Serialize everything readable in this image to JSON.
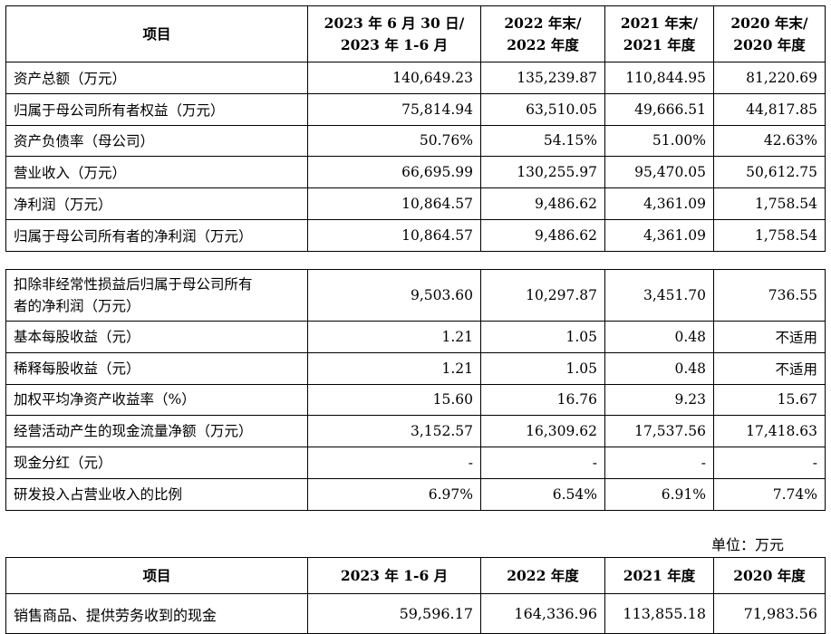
{
  "table1": {
    "headers": [
      [
        "项目"
      ],
      [
        "2023 年 6 月 30 日/",
        "2023 年 1-6 月"
      ],
      [
        "2022 年末/",
        "2022 年度"
      ],
      [
        "2021 年末/",
        "2021 年度"
      ],
      [
        "2020 年末/",
        "2020 年度"
      ]
    ],
    "rows": [
      {
        "label": "资产总额（万元）",
        "values": [
          "140,649.23",
          "135,239.87",
          "110,844.95",
          "81,220.69"
        ]
      },
      {
        "label": "归属于母公司所有者权益（万元）",
        "values": [
          "75,814.94",
          "63,510.05",
          "49,666.51",
          "44,817.85"
        ]
      },
      {
        "label": "资产负债率（母公司）",
        "values": [
          "50.76%",
          "54.15%",
          "51.00%",
          "42.63%"
        ]
      },
      {
        "label": "营业收入（万元）",
        "values": [
          "66,695.99",
          "130,255.97",
          "95,470.05",
          "50,612.75"
        ]
      },
      {
        "label": "净利润（万元）",
        "values": [
          "10,864.57",
          "9,486.62",
          "4,361.09",
          "1,758.54"
        ]
      },
      {
        "label": "归属于母公司所有者的净利润（万元）",
        "values": [
          "10,864.57",
          "9,486.62",
          "4,361.09",
          "1,758.54"
        ]
      }
    ]
  },
  "table2": {
    "rows": [
      {
        "label_lines": [
          "扣除非经常性损益后归属于母公司所有",
          "者的净利润（万元）"
        ],
        "values": [
          "9,503.60",
          "10,297.87",
          "3,451.70",
          "736.55"
        ]
      },
      {
        "label_lines": [
          "基本每股收益（元）"
        ],
        "values": [
          "1.21",
          "1.05",
          "0.48",
          "不适用"
        ]
      },
      {
        "label_lines": [
          "稀释每股收益（元）"
        ],
        "values": [
          "1.21",
          "1.05",
          "0.48",
          "不适用"
        ]
      },
      {
        "label_lines": [
          "加权平均净资产收益率（%）"
        ],
        "values": [
          "15.60",
          "16.76",
          "9.23",
          "15.67"
        ]
      },
      {
        "label_lines": [
          "经营活动产生的现金流量净额（万元）"
        ],
        "values": [
          "3,152.57",
          "16,309.62",
          "17,537.56",
          "17,418.63"
        ]
      },
      {
        "label_lines": [
          "现金分红（元）"
        ],
        "values": [
          "-",
          "-",
          "-",
          "-"
        ]
      },
      {
        "label_lines": [
          "研发投入占营业收入的比例"
        ],
        "values": [
          "6.97%",
          "6.54%",
          "6.91%",
          "7.74%"
        ]
      }
    ]
  },
  "unit_note": "单位：万元",
  "table3": {
    "headers": [
      "项目",
      "2023 年 1-6 月",
      "2022 年度",
      "2021 年度",
      "2020 年度"
    ],
    "rows": [
      {
        "label": "销售商品、提供劳务收到的现金",
        "values": [
          "59,596.17",
          "164,336.96",
          "113,855.18",
          "71,983.56"
        ]
      }
    ]
  }
}
